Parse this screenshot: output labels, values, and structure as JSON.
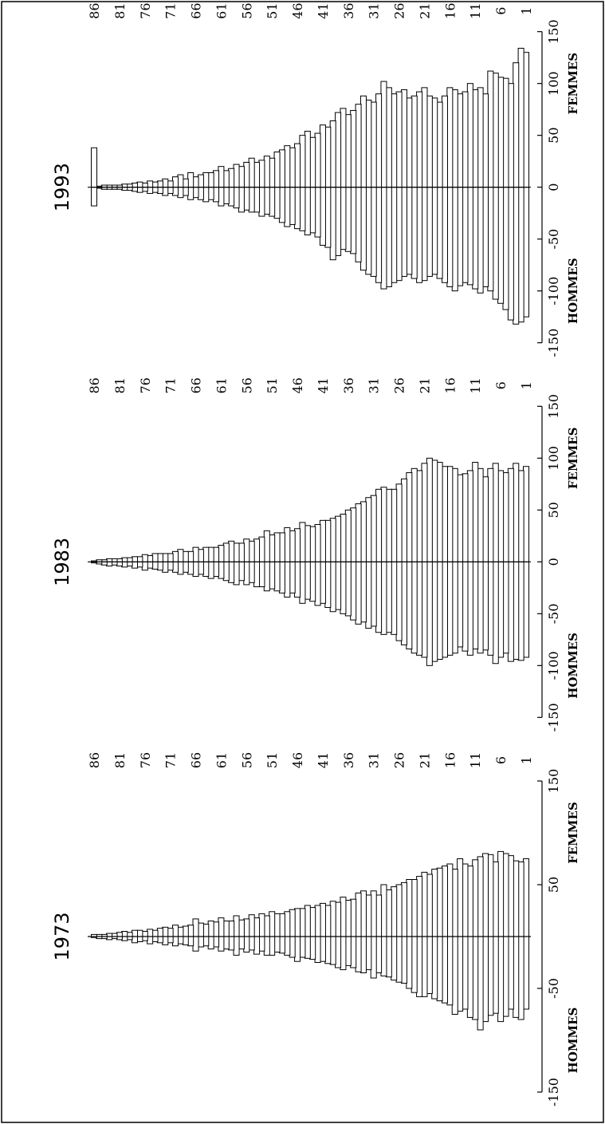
{
  "chart_data": [
    {
      "type": "bar",
      "orientation": "horizontal-pyramid",
      "title": "1973",
      "male_label": "HOMMES",
      "female_label": "FEMMES",
      "xlim": [
        -150,
        150
      ],
      "value_ticks": [
        "-150",
        "-50",
        "50",
        "150"
      ],
      "age_ticks": [
        "86",
        "81",
        "76",
        "71",
        "66",
        "61",
        "56",
        "51",
        "46",
        "41",
        "36",
        "31",
        "26",
        "21",
        "16",
        "11",
        "6",
        "1"
      ],
      "ages": "1 to 86",
      "series": [
        {
          "name": "HOMMES",
          "values": [
            -70,
            -80,
            -78,
            -70,
            -77,
            -82,
            -74,
            -76,
            -82,
            -90,
            -80,
            -78,
            -70,
            -72,
            -75,
            -66,
            -64,
            -62,
            -60,
            -55,
            -58,
            -58,
            -54,
            -50,
            -45,
            -44,
            -42,
            -39,
            -38,
            -35,
            -40,
            -32,
            -35,
            -34,
            -30,
            -28,
            -32,
            -30,
            -27,
            -26,
            -24,
            -25,
            -22,
            -21,
            -20,
            -24,
            -20,
            -18,
            -16,
            -15,
            -18,
            -18,
            -14,
            -17,
            -13,
            -15,
            -12,
            -18,
            -13,
            -12,
            -14,
            -10,
            -12,
            -9,
            -10,
            -14,
            -9,
            -8,
            -7,
            -9,
            -6,
            -8,
            -6,
            -5,
            -7,
            -4,
            -5,
            -6,
            -3,
            -4,
            -3,
            -2,
            -3,
            -2,
            -2,
            -1
          ]
        },
        {
          "name": "FEMMES",
          "values": [
            75,
            72,
            73,
            78,
            80,
            82,
            72,
            79,
            80,
            77,
            74,
            68,
            70,
            75,
            65,
            70,
            68,
            66,
            65,
            60,
            62,
            58,
            55,
            55,
            52,
            50,
            48,
            45,
            50,
            40,
            44,
            40,
            44,
            42,
            36,
            35,
            38,
            33,
            34,
            30,
            32,
            30,
            28,
            30,
            27,
            27,
            26,
            24,
            22,
            22,
            24,
            20,
            22,
            18,
            21,
            17,
            16,
            20,
            15,
            15,
            18,
            14,
            15,
            12,
            13,
            17,
            11,
            10,
            9,
            11,
            8,
            9,
            8,
            6,
            7,
            5,
            6,
            6,
            4,
            5,
            4,
            3,
            3,
            2,
            2,
            2
          ]
        }
      ]
    },
    {
      "type": "bar",
      "orientation": "horizontal-pyramid",
      "title": "1983",
      "male_label": "HOMMES",
      "female_label": "FEMMES",
      "xlim": [
        -150,
        150
      ],
      "value_ticks": [
        "-150",
        "-100",
        "-50",
        "0",
        "50",
        "100",
        "150"
      ],
      "age_ticks": [
        "86",
        "81",
        "76",
        "71",
        "66",
        "61",
        "56",
        "51",
        "46",
        "41",
        "36",
        "31",
        "26",
        "21",
        "16",
        "11",
        "6",
        "1"
      ],
      "ages": "1 to 86",
      "series": [
        {
          "name": "HOMMES",
          "values": [
            -92,
            -95,
            -94,
            -96,
            -88,
            -92,
            -98,
            -90,
            -85,
            -88,
            -84,
            -90,
            -86,
            -82,
            -88,
            -90,
            -92,
            -94,
            -96,
            -100,
            -92,
            -90,
            -88,
            -84,
            -80,
            -76,
            -70,
            -68,
            -70,
            -68,
            -62,
            -64,
            -58,
            -60,
            -56,
            -52,
            -50,
            -46,
            -48,
            -44,
            -40,
            -42,
            -38,
            -36,
            -40,
            -34,
            -30,
            -34,
            -30,
            -28,
            -26,
            -28,
            -24,
            -24,
            -20,
            -22,
            -18,
            -22,
            -20,
            -18,
            -16,
            -14,
            -16,
            -14,
            -12,
            -14,
            -12,
            -10,
            -12,
            -10,
            -8,
            -10,
            -8,
            -7,
            -6,
            -8,
            -5,
            -6,
            -4,
            -5,
            -4,
            -3,
            -4,
            -3,
            -2,
            -1
          ]
        },
        {
          "name": "FEMMES",
          "values": [
            92,
            88,
            95,
            90,
            86,
            88,
            95,
            90,
            82,
            90,
            96,
            88,
            85,
            84,
            90,
            92,
            92,
            96,
            98,
            100,
            95,
            88,
            90,
            86,
            80,
            75,
            70,
            70,
            72,
            70,
            64,
            62,
            58,
            56,
            52,
            50,
            46,
            44,
            42,
            40,
            40,
            36,
            34,
            35,
            38,
            32,
            30,
            33,
            28,
            28,
            26,
            30,
            24,
            22,
            20,
            22,
            18,
            18,
            20,
            18,
            16,
            14,
            14,
            14,
            12,
            14,
            10,
            10,
            12,
            10,
            8,
            8,
            8,
            8,
            6,
            7,
            5,
            5,
            4,
            4,
            3,
            3,
            3,
            2,
            2,
            1
          ]
        }
      ]
    },
    {
      "type": "bar",
      "orientation": "horizontal-pyramid",
      "title": "1993",
      "male_label": "HOMMES",
      "female_label": "FEMMES",
      "xlim": [
        -150,
        150
      ],
      "value_ticks": [
        "-150",
        "-100",
        "-50",
        "0",
        "50",
        "100",
        "150"
      ],
      "age_ticks": [
        "86",
        "81",
        "76",
        "71",
        "66",
        "61",
        "56",
        "51",
        "46",
        "41",
        "36",
        "31",
        "26",
        "21",
        "16",
        "11",
        "6",
        "1"
      ],
      "ages": "1 to 86",
      "series": [
        {
          "name": "HOMMES",
          "values": [
            -125,
            -130,
            -132,
            -128,
            -118,
            -112,
            -108,
            -100,
            -96,
            -102,
            -98,
            -94,
            -92,
            -95,
            -100,
            -96,
            -92,
            -88,
            -84,
            -86,
            -90,
            -92,
            -88,
            -84,
            -86,
            -90,
            -92,
            -96,
            -98,
            -92,
            -86,
            -84,
            -80,
            -72,
            -64,
            -62,
            -60,
            -66,
            -70,
            -58,
            -56,
            -48,
            -44,
            -46,
            -42,
            -40,
            -36,
            -38,
            -34,
            -30,
            -28,
            -26,
            -28,
            -24,
            -24,
            -22,
            -24,
            -20,
            -18,
            -16,
            -18,
            -14,
            -12,
            -14,
            -12,
            -10,
            -12,
            -8,
            -10,
            -8,
            -6,
            -8,
            -6,
            -5,
            -6,
            -4,
            -5,
            -4,
            -3,
            -3,
            -2,
            -2,
            -2,
            -2,
            -1,
            -18
          ]
        },
        {
          "name": "FEMMES",
          "values": [
            130,
            134,
            120,
            100,
            105,
            106,
            110,
            112,
            90,
            96,
            94,
            100,
            92,
            90,
            94,
            96,
            88,
            82,
            86,
            88,
            96,
            92,
            88,
            86,
            94,
            92,
            90,
            96,
            102,
            90,
            82,
            84,
            88,
            80,
            74,
            70,
            76,
            72,
            64,
            58,
            60,
            52,
            48,
            54,
            50,
            42,
            38,
            40,
            36,
            34,
            28,
            30,
            26,
            24,
            28,
            24,
            20,
            22,
            18,
            16,
            20,
            16,
            14,
            14,
            12,
            10,
            14,
            8,
            12,
            10,
            6,
            8,
            6,
            5,
            6,
            4,
            5,
            4,
            3,
            3,
            2,
            2,
            2,
            2,
            1,
            38
          ]
        }
      ]
    }
  ]
}
